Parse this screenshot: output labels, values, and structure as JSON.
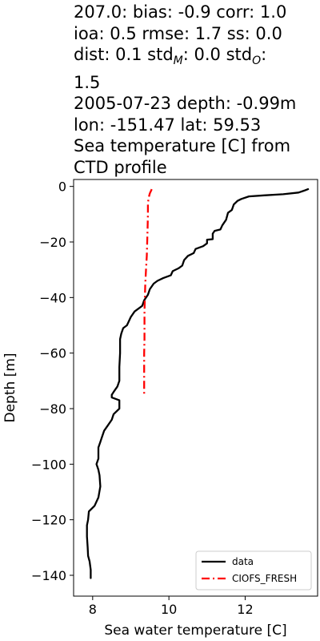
{
  "title": {
    "line1": "207.0: bias: -0.9  corr: 1.0",
    "line2": "ioa: 0.5  rmse: 1.7  ss: 0.0",
    "line3_a": "dist: 0.1  std",
    "line3_sub_m": "M",
    "line3_b": ": 0.0  std",
    "line3_sub_o": "O",
    "line3_c": ":",
    "line4": "1.5",
    "line5": "2005-07-23 depth: -0.99m",
    "line6": "lon: -151.47 lat: 59.53",
    "line7": "Sea temperature [C] from",
    "line8": "CTD profile"
  },
  "chart_data": {
    "type": "line",
    "xlabel": "Sea water temperature [C]",
    "ylabel": "Depth [m]",
    "xlim": [
      7.5,
      13.9
    ],
    "ylim": [
      -147.5,
      2.5
    ],
    "xticks": [
      8,
      10,
      12
    ],
    "yticks": [
      0,
      -20,
      -40,
      -60,
      -80,
      -100,
      -120,
      -140
    ],
    "legend_position": "lower right",
    "series": [
      {
        "name": "data",
        "color": "#000000",
        "style": "solid",
        "points": [
          [
            13.65,
            -1.0
          ],
          [
            13.55,
            -1.5
          ],
          [
            13.4,
            -2.2
          ],
          [
            13.0,
            -2.8
          ],
          [
            12.5,
            -3.2
          ],
          [
            12.1,
            -3.6
          ],
          [
            11.9,
            -4.5
          ],
          [
            11.8,
            -5.2
          ],
          [
            11.7,
            -6.5
          ],
          [
            11.65,
            -8.5
          ],
          [
            11.55,
            -9.5
          ],
          [
            11.5,
            -12.0
          ],
          [
            11.4,
            -14.0
          ],
          [
            11.35,
            -15.5
          ],
          [
            11.2,
            -16.0
          ],
          [
            11.15,
            -17.0
          ],
          [
            11.15,
            -19.0
          ],
          [
            11.0,
            -19.2
          ],
          [
            11.0,
            -20.5
          ],
          [
            10.9,
            -21.5
          ],
          [
            10.7,
            -22.5
          ],
          [
            10.65,
            -24.0
          ],
          [
            10.5,
            -25.0
          ],
          [
            10.4,
            -26.5
          ],
          [
            10.35,
            -28.5
          ],
          [
            10.25,
            -29.5
          ],
          [
            10.1,
            -30.5
          ],
          [
            10.05,
            -32.0
          ],
          [
            9.85,
            -33.0
          ],
          [
            9.7,
            -34.0
          ],
          [
            9.6,
            -35.0
          ],
          [
            9.5,
            -37.0
          ],
          [
            9.45,
            -39.0
          ],
          [
            9.35,
            -41.0
          ],
          [
            9.3,
            -43.0
          ],
          [
            9.1,
            -45.0
          ],
          [
            9.0,
            -47.0
          ],
          [
            8.9,
            -50.0
          ],
          [
            8.8,
            -51.0
          ],
          [
            8.75,
            -53.0
          ],
          [
            8.72,
            -55.0
          ],
          [
            8.72,
            -60.0
          ],
          [
            8.7,
            -65.0
          ],
          [
            8.7,
            -70.0
          ],
          [
            8.65,
            -72.0
          ],
          [
            8.55,
            -74.0
          ],
          [
            8.5,
            -75.0
          ],
          [
            8.5,
            -76.0
          ],
          [
            8.7,
            -77.0
          ],
          [
            8.7,
            -80.0
          ],
          [
            8.55,
            -82.0
          ],
          [
            8.5,
            -84.0
          ],
          [
            8.4,
            -86.0
          ],
          [
            8.3,
            -88.0
          ],
          [
            8.25,
            -90.0
          ],
          [
            8.2,
            -92.0
          ],
          [
            8.15,
            -94.0
          ],
          [
            8.15,
            -98.0
          ],
          [
            8.1,
            -100.0
          ],
          [
            8.15,
            -102.0
          ],
          [
            8.18,
            -104.0
          ],
          [
            8.2,
            -108.0
          ],
          [
            8.15,
            -112.0
          ],
          [
            8.05,
            -115.0
          ],
          [
            7.9,
            -117.0
          ],
          [
            7.88,
            -120.0
          ],
          [
            7.85,
            -122.0
          ],
          [
            7.85,
            -126.0
          ],
          [
            7.87,
            -130.0
          ],
          [
            7.88,
            -133.0
          ],
          [
            7.92,
            -135.0
          ],
          [
            7.95,
            -138.0
          ],
          [
            7.95,
            -141.0
          ]
        ]
      },
      {
        "name": "CIOFS_FRESH",
        "color": "#ff0000",
        "style": "dashdot",
        "points": [
          [
            9.55,
            -1.0
          ],
          [
            9.5,
            -2.5
          ],
          [
            9.47,
            -4.0
          ],
          [
            9.45,
            -6.0
          ],
          [
            9.45,
            -10.0
          ],
          [
            9.44,
            -15.0
          ],
          [
            9.43,
            -20.0
          ],
          [
            9.42,
            -25.0
          ],
          [
            9.4,
            -30.0
          ],
          [
            9.38,
            -35.0
          ],
          [
            9.37,
            -40.0
          ],
          [
            9.36,
            -45.0
          ],
          [
            9.36,
            -50.0
          ],
          [
            9.36,
            -55.0
          ],
          [
            9.35,
            -60.0
          ],
          [
            9.35,
            -65.0
          ],
          [
            9.35,
            -70.0
          ],
          [
            9.35,
            -75.0
          ]
        ]
      }
    ]
  }
}
